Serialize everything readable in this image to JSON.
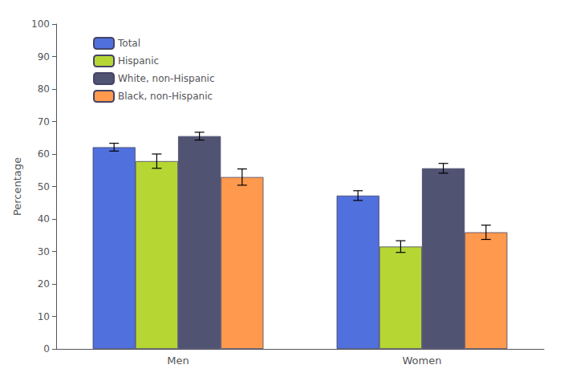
{
  "chart_data": {
    "type": "bar",
    "categories": [
      "Men",
      "Women"
    ],
    "series": [
      {
        "name": "Total",
        "values": [
          62.1,
          47.2
        ],
        "errors": [
          1.2,
          1.5
        ]
      },
      {
        "name": "Hispanic",
        "values": [
          57.8,
          31.5
        ],
        "errors": [
          2.2,
          1.8
        ]
      },
      {
        "name": "White, non-Hispanic",
        "values": [
          65.5,
          55.6
        ],
        "errors": [
          1.2,
          1.5
        ]
      },
      {
        "name": "Black, non-Hispanic",
        "values": [
          52.9,
          35.9
        ],
        "errors": [
          2.5,
          2.2
        ]
      }
    ],
    "ylabel": "Percentage",
    "ylim": [
      0,
      100
    ],
    "yticks": [
      0,
      10,
      20,
      30,
      40,
      50,
      60,
      70,
      80,
      90,
      100
    ],
    "grid": false,
    "legend": "upper left"
  }
}
